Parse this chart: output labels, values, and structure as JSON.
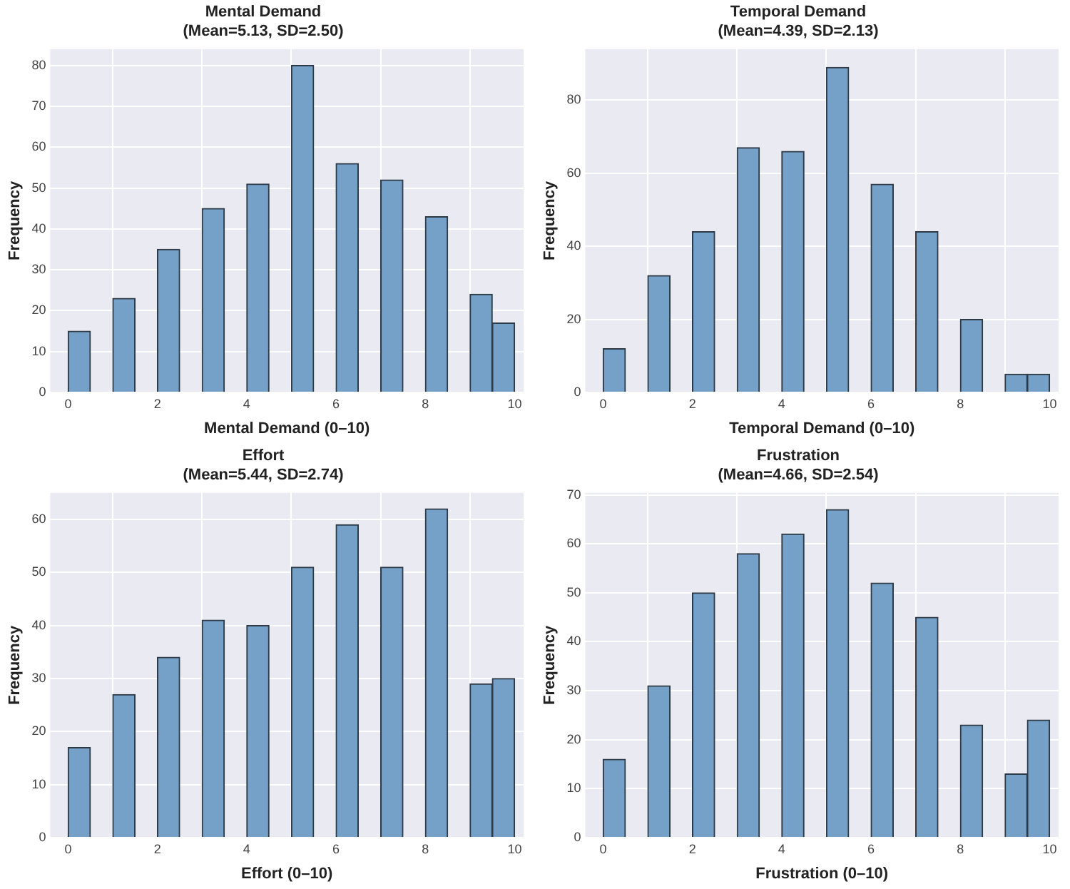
{
  "chart_data": [
    {
      "type": "histogram",
      "title": "Mental Demand",
      "subtitle": "(Mean=5.13, SD=2.50)",
      "xlabel": "Mental Demand (0–10)",
      "ylabel": "Frequency",
      "color": "#75a1c8",
      "bins": [
        0,
        0.5,
        1,
        1.5,
        2,
        2.5,
        3,
        3.5,
        4,
        4.5,
        5,
        5.5,
        6,
        6.5,
        7,
        7.5,
        8,
        8.5,
        9,
        9.5,
        10
      ],
      "values": [
        15,
        0,
        23,
        0,
        35,
        0,
        45,
        0,
        51,
        0,
        80,
        0,
        56,
        0,
        52,
        0,
        43,
        0,
        24,
        17
      ],
      "xlim": [
        -0.4,
        10.2
      ],
      "xticks": [
        0,
        2,
        4,
        6,
        8,
        10
      ],
      "ylim": [
        0,
        84
      ],
      "yticks": [
        0,
        10,
        20,
        30,
        40,
        50,
        60,
        70,
        80
      ],
      "grid": true
    },
    {
      "type": "histogram",
      "title": "Temporal Demand",
      "subtitle": "(Mean=4.39, SD=2.13)",
      "xlabel": "Temporal Demand (0–10)",
      "ylabel": "Frequency",
      "color": "#75a1c8",
      "bins": [
        0,
        0.5,
        1,
        1.5,
        2,
        2.5,
        3,
        3.5,
        4,
        4.5,
        5,
        5.5,
        6,
        6.5,
        7,
        7.5,
        8,
        8.5,
        9,
        9.5,
        10
      ],
      "values": [
        12,
        0,
        32,
        0,
        44,
        0,
        67,
        0,
        66,
        0,
        89,
        0,
        57,
        0,
        44,
        0,
        20,
        0,
        5,
        5
      ],
      "xlim": [
        -0.4,
        10.2
      ],
      "xticks": [
        0,
        2,
        4,
        6,
        8,
        10
      ],
      "ylim": [
        0,
        94
      ],
      "yticks": [
        0,
        20,
        40,
        60,
        80
      ],
      "grid": true
    },
    {
      "type": "histogram",
      "title": "Effort",
      "subtitle": "(Mean=5.44, SD=2.74)",
      "xlabel": "Effort (0–10)",
      "ylabel": "Frequency",
      "color": "#75a1c8",
      "bins": [
        0,
        0.5,
        1,
        1.5,
        2,
        2.5,
        3,
        3.5,
        4,
        4.5,
        5,
        5.5,
        6,
        6.5,
        7,
        7.5,
        8,
        8.5,
        9,
        9.5,
        10
      ],
      "values": [
        17,
        0,
        27,
        0,
        34,
        0,
        41,
        0,
        40,
        0,
        51,
        0,
        59,
        0,
        51,
        0,
        62,
        0,
        29,
        30
      ],
      "xlim": [
        -0.4,
        10.2
      ],
      "xticks": [
        0,
        2,
        4,
        6,
        8,
        10
      ],
      "ylim": [
        0,
        65
      ],
      "yticks": [
        0,
        10,
        20,
        30,
        40,
        50,
        60
      ],
      "grid": true
    },
    {
      "type": "histogram",
      "title": "Frustration",
      "subtitle": "(Mean=4.66, SD=2.54)",
      "xlabel": "Frustration (0–10)",
      "ylabel": "Frequency",
      "color": "#75a1c8",
      "bins": [
        0,
        0.5,
        1,
        1.5,
        2,
        2.5,
        3,
        3.5,
        4,
        4.5,
        5,
        5.5,
        6,
        6.5,
        7,
        7.5,
        8,
        8.5,
        9,
        9.5,
        10
      ],
      "values": [
        16,
        0,
        31,
        0,
        50,
        0,
        58,
        0,
        62,
        0,
        67,
        0,
        52,
        0,
        45,
        0,
        23,
        0,
        13,
        24
      ],
      "xlim": [
        -0.4,
        10.2
      ],
      "xticks": [
        0,
        2,
        4,
        6,
        8,
        10
      ],
      "ylim": [
        0,
        70.4
      ],
      "yticks": [
        0,
        10,
        20,
        30,
        40,
        50,
        60,
        70
      ],
      "grid": true
    }
  ]
}
